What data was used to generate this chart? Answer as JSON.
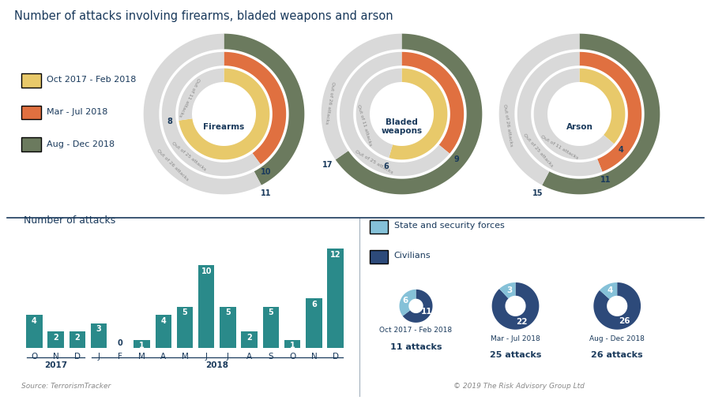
{
  "title": "Number of attacks involving firearms, bladed weapons and arson",
  "title_color": "#1a3a5c",
  "background_color": "#ffffff",
  "legend_items": [
    {
      "label": "Oct 2017 - Feb 2018",
      "color": "#e8c96a"
    },
    {
      "label": "Mar - Jul 2018",
      "color": "#e07040"
    },
    {
      "label": "Aug - Dec 2018",
      "color": "#6b7a5e"
    }
  ],
  "donut_charts": [
    {
      "name": "Firearms",
      "rings": [
        {
          "label": "Out of 11 attacks",
          "value": 8,
          "total": 11,
          "color": "#e8c96a"
        },
        {
          "label": "Out of 25 attacks",
          "value": 10,
          "total": 25,
          "color": "#e07040"
        },
        {
          "label": "Out of 26 attacks",
          "value": 11,
          "total": 26,
          "color": "#6b7a5e"
        }
      ],
      "values": [
        8,
        10,
        11
      ]
    },
    {
      "name": "Bladed\nweapons",
      "rings": [
        {
          "label": "Out of 11 attacks",
          "value": 6,
          "total": 11,
          "color": "#e8c96a"
        },
        {
          "label": "Out of 25 attacks",
          "value": 9,
          "total": 25,
          "color": "#e07040"
        },
        {
          "label": "Out of 26 attacks",
          "value": 17,
          "total": 26,
          "color": "#6b7a5e"
        }
      ],
      "values": [
        6,
        9,
        17
      ]
    },
    {
      "name": "Arson",
      "rings": [
        {
          "label": "Out of 11 attacks",
          "value": 4,
          "total": 11,
          "color": "#e8c96a"
        },
        {
          "label": "Out of 25 attacks",
          "value": 11,
          "total": 25,
          "color": "#e07040"
        },
        {
          "label": "Out of 26 attacks",
          "value": 15,
          "total": 26,
          "color": "#6b7a5e"
        }
      ],
      "values": [
        4,
        11,
        15
      ]
    }
  ],
  "gap_color": "#d9d9d9",
  "bar_chart": {
    "title": "Number of attacks",
    "months": [
      "O",
      "N",
      "D",
      "J",
      "F",
      "M",
      "A",
      "M",
      "J",
      "J",
      "A",
      "S",
      "O",
      "N",
      "D"
    ],
    "values": [
      4,
      2,
      2,
      3,
      0,
      1,
      4,
      5,
      10,
      5,
      2,
      5,
      1,
      6,
      12
    ],
    "bar_color": "#2a8a8a",
    "source": "Source: TerrorismTracker"
  },
  "victim_legend": [
    {
      "label": "State and security forces",
      "color": "#85c1d8"
    },
    {
      "label": "Civilians",
      "color": "#2d4a7a"
    }
  ],
  "victim_donuts": [
    {
      "period": "Oct 2017 - Feb 2018",
      "attacks": "11 attacks",
      "civilians": 11,
      "state": 6,
      "civ_color": "#2d4a7a",
      "state_color": "#85c1d8"
    },
    {
      "period": "Mar - Jul 2018",
      "attacks": "25 attacks",
      "civilians": 22,
      "state": 3,
      "civ_color": "#2d4a7a",
      "state_color": "#85c1d8"
    },
    {
      "period": "Aug - Dec 2018",
      "attacks": "26 attacks",
      "civilians": 26,
      "state": 4,
      "civ_color": "#2d4a7a",
      "state_color": "#85c1d8"
    }
  ],
  "copyright": "© 2019 The Risk Advisory Group Ltd",
  "divider_color": "#1a3a5c",
  "text_color": "#1a3a5c",
  "label_color": "#555555"
}
